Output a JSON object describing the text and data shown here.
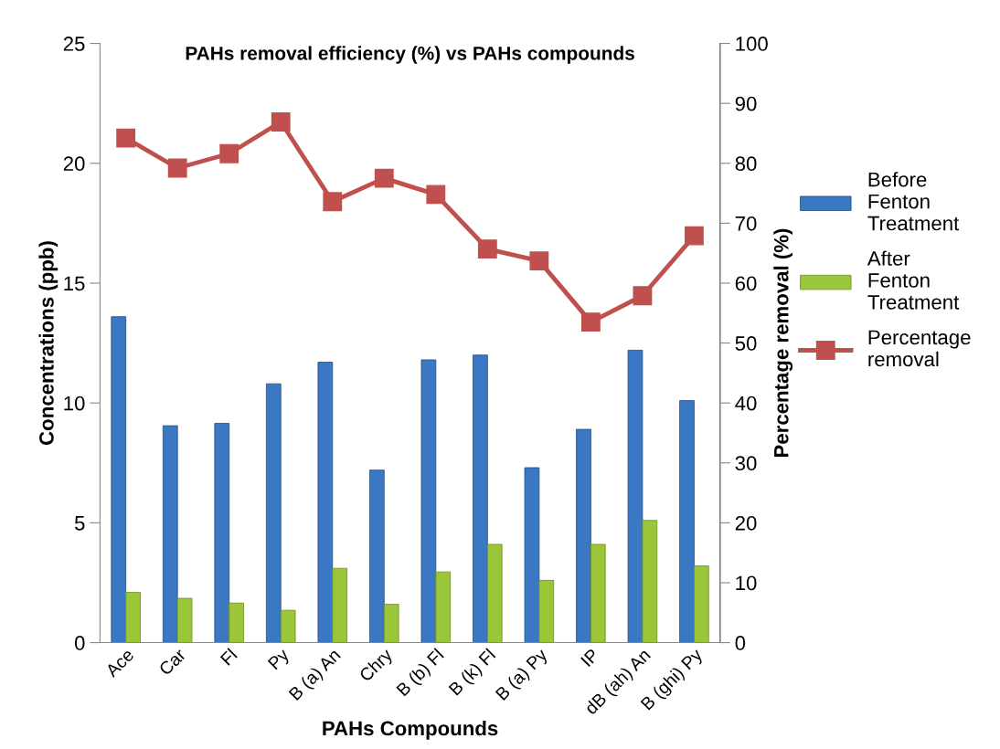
{
  "chart_data": {
    "type": "bar",
    "title": "PAHs removal efficiency (%) vs PAHs compounds",
    "xlabel": "PAHs Compounds",
    "ylabel": "Concentrations (ppb)",
    "y2label": "Percentage removal (%)",
    "categories": [
      "Ace",
      "Car",
      "Fl",
      "Py",
      "B (a) An",
      "Chry",
      "B (b) Fl",
      "B (k) Fl",
      "B (a) Py",
      "IP",
      "dB (ah) An",
      "B (ghi) Py"
    ],
    "series": [
      {
        "name": "Before Fenton Treatment",
        "color": "#3a78c4",
        "values": [
          13.6,
          9.05,
          9.15,
          10.8,
          11.7,
          7.2,
          11.8,
          12.0,
          7.3,
          8.9,
          12.2,
          10.1
        ]
      },
      {
        "name": "After Fenton Treatment",
        "color": "#9bc63a",
        "values": [
          2.1,
          1.85,
          1.65,
          1.35,
          3.1,
          1.6,
          2.95,
          4.1,
          2.6,
          4.1,
          5.1,
          3.2
        ]
      },
      {
        "name": "Percentage removal",
        "type": "line",
        "axis": "y2",
        "color": "#c0504d",
        "marker": "square",
        "values": [
          84.2,
          79.2,
          81.6,
          86.9,
          73.6,
          77.5,
          74.8,
          65.7,
          63.7,
          53.5,
          57.9,
          67.9
        ]
      }
    ],
    "ylim": [
      0,
      25
    ],
    "yticks": [
      0,
      5,
      10,
      15,
      20,
      25
    ],
    "y2lim": [
      0,
      100
    ],
    "y2ticks": [
      0,
      10,
      20,
      30,
      40,
      50,
      60,
      70,
      80,
      90,
      100
    ],
    "legend": "right",
    "grid": false
  }
}
